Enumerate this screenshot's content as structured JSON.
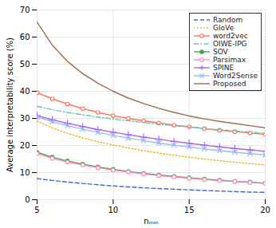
{
  "chart_data": {
    "type": "line",
    "x": [
      5,
      6,
      7,
      8,
      9,
      10,
      11,
      12,
      13,
      14,
      15,
      16,
      17,
      18,
      19,
      20
    ],
    "series": [
      {
        "name": "Random",
        "line_style": "dashed",
        "values": [
          7.8,
          7.1,
          6.5,
          6.0,
          5.5,
          5.1,
          4.7,
          4.4,
          4.1,
          3.9,
          3.6,
          3.4,
          3.2,
          3.0,
          2.8,
          2.7
        ]
      },
      {
        "name": "GloVe",
        "line_style": "dotted",
        "values": [
          29.0,
          26.5,
          24.5,
          22.8,
          21.4,
          20.2,
          19.1,
          18.1,
          17.2,
          16.4,
          15.7,
          15.0,
          14.4,
          13.8,
          13.3,
          12.8
        ]
      },
      {
        "name": "word2vec",
        "line_style": "solid",
        "marker": "open_circle",
        "values": [
          39.5,
          37.2,
          35.3,
          33.6,
          32.2,
          31.0,
          30.0,
          29.1,
          28.3,
          27.5,
          26.9,
          26.2,
          25.6,
          25.1,
          24.6,
          24.1
        ]
      },
      {
        "name": "OIWE-IPG",
        "line_style": "dashdot",
        "values": [
          34.5,
          33.2,
          32.2,
          31.3,
          30.5,
          29.8,
          29.1,
          28.5,
          27.9,
          27.3,
          26.8,
          26.3,
          25.8,
          25.4,
          24.9,
          24.5
        ]
      },
      {
        "name": "SOV",
        "line_style": "solid",
        "marker": "circle",
        "values": [
          17.5,
          15.7,
          14.3,
          13.1,
          12.1,
          11.2,
          10.4,
          9.7,
          9.1,
          8.6,
          8.1,
          7.6,
          7.2,
          6.8,
          6.5,
          6.1
        ]
      },
      {
        "name": "Parsimax",
        "line_style": "solid",
        "marker": "open_circle",
        "values": [
          17.0,
          15.3,
          13.9,
          12.8,
          11.8,
          10.9,
          10.2,
          9.5,
          8.9,
          8.4,
          7.9,
          7.4,
          7.0,
          6.7,
          6.3,
          6.0
        ]
      },
      {
        "name": "SPINE",
        "line_style": "solid",
        "marker": "plus",
        "values": [
          31.0,
          29.5,
          28.2,
          27.0,
          25.9,
          24.9,
          24.0,
          23.1,
          22.3,
          21.5,
          20.8,
          20.1,
          19.5,
          18.9,
          18.4,
          17.9
        ]
      },
      {
        "name": "Word2Sense",
        "line_style": "solid",
        "marker": "x",
        "values": [
          30.5,
          28.8,
          27.3,
          26.0,
          24.8,
          23.7,
          22.7,
          21.8,
          20.9,
          20.1,
          19.4,
          18.7,
          18.1,
          17.5,
          17.0,
          16.5
        ]
      },
      {
        "name": "Proposed",
        "line_style": "solid",
        "values": [
          65.5,
          57.0,
          51.0,
          46.5,
          43.0,
          40.0,
          37.5,
          35.5,
          33.7,
          32.2,
          30.9,
          29.8,
          28.9,
          28.1,
          27.3,
          26.5
        ]
      }
    ],
    "xlim": [
      5,
      20
    ],
    "ylim": [
      0,
      70
    ],
    "xticks": [
      5,
      10,
      15,
      20
    ],
    "yticks": [
      0,
      10,
      20,
      30,
      40,
      50,
      60,
      70
    ],
    "xlabel": "nₘᵢₙ",
    "ylabel": "Average interpretability score (%)",
    "grid": true,
    "legend": "upper right"
  }
}
